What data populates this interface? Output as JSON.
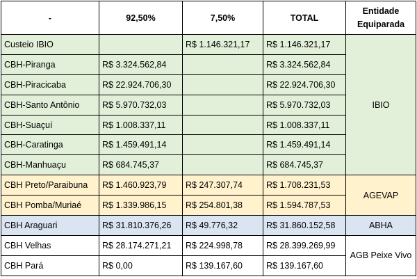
{
  "headers": {
    "col0": "-",
    "col1": "92,50%",
    "col2": "7,50%",
    "col3": "TOTAL",
    "col4": "Entidade Equiparada"
  },
  "rows": [
    {
      "name": "Custeio IBIO",
      "v92": "",
      "v7": "R$ 1.146.321,17",
      "total": "R$ 1.146.321,17"
    },
    {
      "name": "CBH-Piranga",
      "v92": "R$ 3.324.562,84",
      "v7": "",
      "total": "R$ 3.324.562,84"
    },
    {
      "name": "CBH-Piracicaba",
      "v92": "R$ 22.924.706,30",
      "v7": "",
      "total": "R$ 22.924.706,30"
    },
    {
      "name": "CBH-Santo Antônio",
      "v92": "R$ 5.970.732,03",
      "v7": "",
      "total": "R$ 5.970.732,03"
    },
    {
      "name": "CBH-Suaçuí",
      "v92": "R$ 1.008.337,11",
      "v7": "",
      "total": "R$ 1.008.337,11"
    },
    {
      "name": "CBH-Caratinga",
      "v92": "R$ 1.459.491,14",
      "v7": "",
      "total": "R$ 1.459.491,14"
    },
    {
      "name": "CBH-Manhuaçu",
      "v92": "R$ 684.745,37",
      "v7": "",
      "total": "R$ 684.745,37"
    },
    {
      "name": "CBH Preto/Paraibuna",
      "v92": "R$ 1.460.923,79",
      "v7": "R$ 247.307,74",
      "total": "R$ 1.708.231,53"
    },
    {
      "name": "CBH Pomba/Muriaé",
      "v92": "R$ 1.339.986,15",
      "v7": "R$ 254.801,38",
      "total": "R$ 1.594.787,53"
    },
    {
      "name": "CBH Araguari",
      "v92": "R$ 31.810.376,26",
      "v7": "R$ 49.776,32",
      "total": "R$ 31.860.152,58"
    },
    {
      "name": "CBH Velhas",
      "v92": "R$ 28.174.271,21",
      "v7": "R$ 224.998,78",
      "total": "R$ 28.399.269,99"
    },
    {
      "name": "CBH Pará",
      "v92": "R$ 0,00",
      "v7": "R$ 139.167,60",
      "total": "R$ 139.167,60"
    }
  ],
  "entities": {
    "ibio": "IBIO",
    "agevap": "AGEVAP",
    "abha": "ABHA",
    "agb": "AGB Peixe Vivo"
  },
  "colors": {
    "green": "#e2efd9",
    "yellow": "#fff2cc",
    "blue": "#dbe5f1",
    "white": "#ffffff"
  }
}
